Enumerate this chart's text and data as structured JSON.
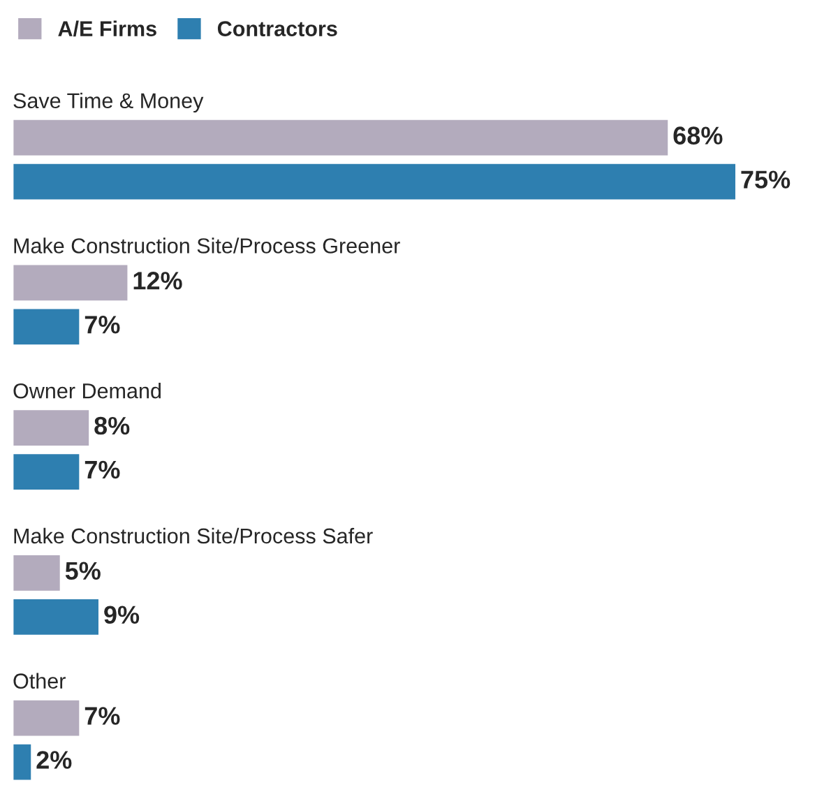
{
  "chart_data": {
    "type": "bar",
    "orientation": "horizontal",
    "categories": [
      "Save Time & Money",
      "Make Construction Site/Process Greener",
      "Owner Demand",
      "Make Construction Site/Process Safer",
      "Other"
    ],
    "series": [
      {
        "name": "A/E Firms",
        "color": "#b3abbd",
        "values": [
          68,
          12,
          8,
          5,
          7
        ],
        "value_labels": [
          "68%",
          "12%",
          "8%",
          "5%",
          "7%"
        ]
      },
      {
        "name": "Contractors",
        "color": "#2e7fb0",
        "values": [
          75,
          7,
          7,
          9,
          2
        ],
        "value_labels": [
          "75%",
          "7%",
          "7%",
          "9%",
          "2%"
        ]
      }
    ],
    "legend": "top left",
    "tick_labels": false
  }
}
